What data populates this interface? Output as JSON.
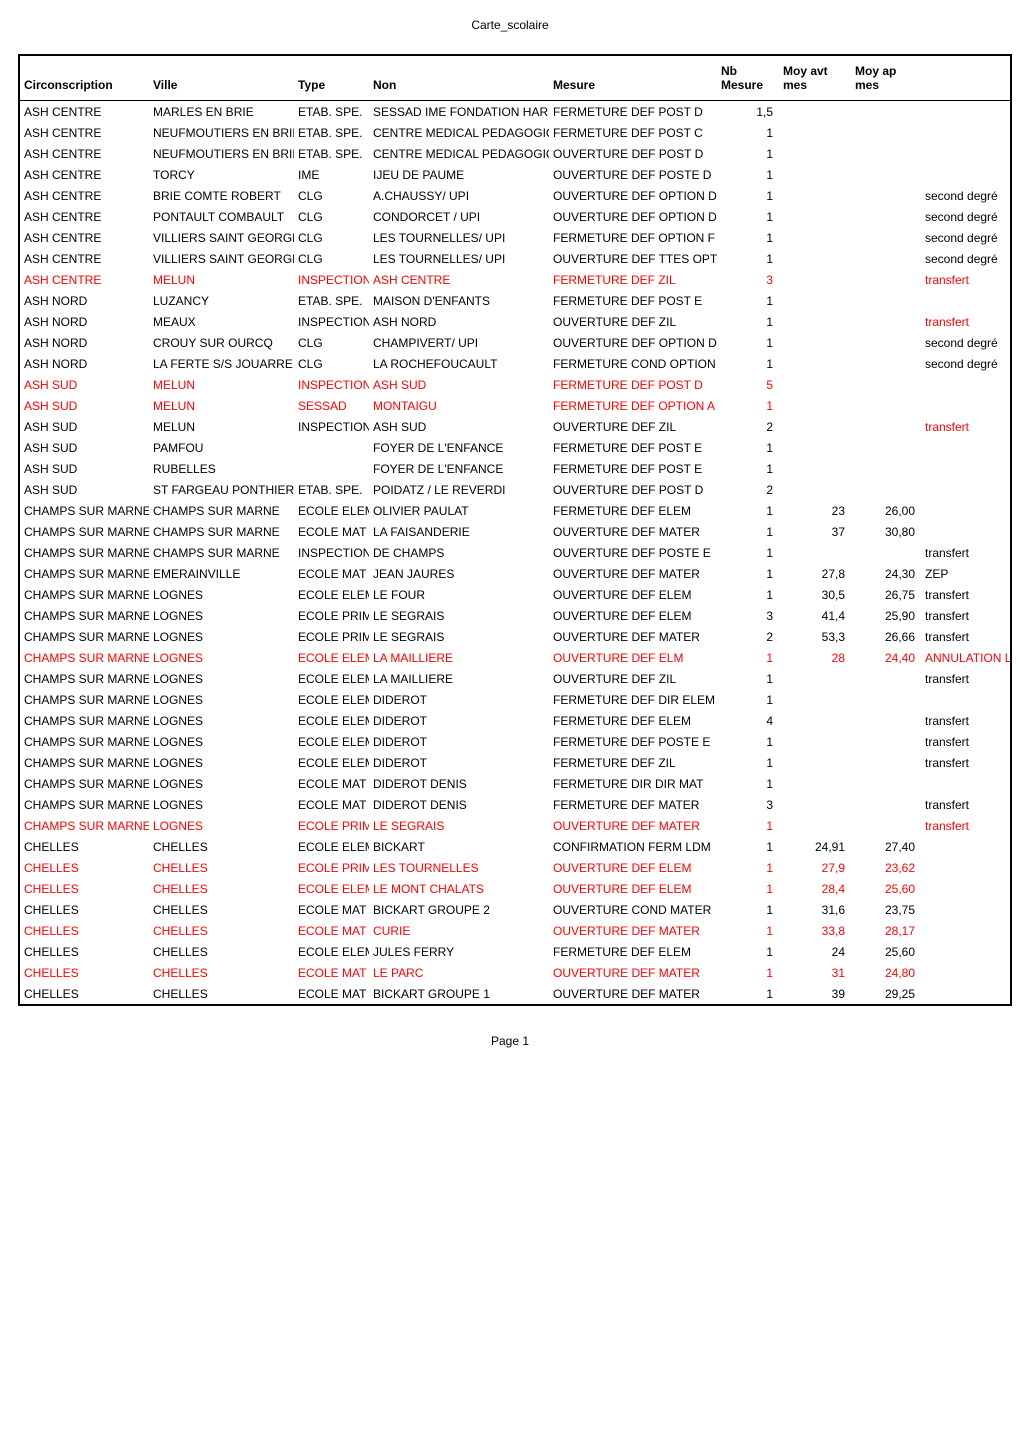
{
  "header": "Carte_scolaire",
  "footer": "Page 1",
  "columns": [
    "Circonscription",
    "Ville",
    "Type",
    "Non",
    "Mesure",
    "Nb Mesure",
    "Moy avt mes",
    "Moy ap mes",
    ""
  ],
  "col_align": [
    "left",
    "left",
    "left",
    "left",
    "left",
    "right",
    "right",
    "right",
    "left"
  ],
  "rows": [
    {
      "red": false,
      "cells": [
        "ASH CENTRE",
        "MARLES EN BRIE",
        "ETAB. SPE.",
        "SESSAD IME FONDATION HARDY",
        "FERMETURE DEF POST D",
        "1,5",
        "",
        "",
        ""
      ]
    },
    {
      "red": false,
      "cells": [
        "ASH CENTRE",
        "NEUFMOUTIERS EN BRIE",
        "ETAB. SPE.",
        "CENTRE MEDICAL PEDAGOGIQU",
        "FERMETURE DEF POST C",
        "1",
        "",
        "",
        ""
      ]
    },
    {
      "red": false,
      "cells": [
        "ASH CENTRE",
        "NEUFMOUTIERS EN BRIE",
        "ETAB. SPE.",
        "CENTRE MEDICAL PEDAGOGIQU",
        "OUVERTURE DEF POST D",
        "1",
        "",
        "",
        ""
      ]
    },
    {
      "red": false,
      "cells": [
        "ASH CENTRE",
        "TORCY",
        "IME",
        "IJEU DE PAUME",
        "OUVERTURE DEF POSTE D",
        "1",
        "",
        "",
        ""
      ]
    },
    {
      "red": false,
      "cells": [
        "ASH CENTRE",
        "BRIE COMTE ROBERT",
        "CLG",
        "A.CHAUSSY/ UPI",
        "OUVERTURE DEF  OPTION D",
        "1",
        "",
        "",
        "second degré"
      ]
    },
    {
      "red": false,
      "cells": [
        "ASH CENTRE",
        "PONTAULT COMBAULT",
        "CLG",
        "CONDORCET / UPI",
        "OUVERTURE DEF OPTION D",
        "1",
        "",
        "",
        "second degré"
      ]
    },
    {
      "red": false,
      "cells": [
        "ASH CENTRE",
        "VILLIERS SAINT GEORGES",
        "CLG",
        "LES TOURNELLES/ UPI",
        "FERMETURE DEF OPTION F",
        "1",
        "",
        "",
        "second degré"
      ]
    },
    {
      "red": false,
      "cells": [
        "ASH CENTRE",
        "VILLIERS SAINT GEORGES",
        "CLG",
        "LES TOURNELLES/ UPI",
        "OUVERTURE DEF TTES OPTION",
        "1",
        "",
        "",
        "second degré"
      ]
    },
    {
      "red": true,
      "cells": [
        "ASH CENTRE",
        "MELUN",
        "INSPECTION",
        "ASH CENTRE",
        "FERMETURE DEF ZIL",
        "3",
        "",
        "",
        "transfert"
      ]
    },
    {
      "red": false,
      "cells": [
        "ASH NORD",
        "LUZANCY",
        "ETAB. SPE.",
        "MAISON D'ENFANTS",
        "FERMETURE DEF POST E",
        "1",
        "",
        "",
        ""
      ]
    },
    {
      "red": false,
      "redExtra": true,
      "cells": [
        "ASH NORD",
        "MEAUX",
        "INSPECTION",
        "ASH NORD",
        "OUVERTURE DEF ZIL",
        "1",
        "",
        "",
        "transfert"
      ]
    },
    {
      "red": false,
      "cells": [
        "ASH NORD",
        "CROUY SUR OURCQ",
        "CLG",
        "CHAMPIVERT/ UPI",
        "OUVERTURE DEF OPTION D",
        "1",
        "",
        "",
        "second degré"
      ]
    },
    {
      "red": false,
      "cells": [
        "ASH NORD",
        "LA FERTE S/S JOUARRE",
        "CLG",
        "LA ROCHEFOUCAULT",
        "FERMETURE COND OPTION D",
        "1",
        "",
        "",
        "second degré"
      ]
    },
    {
      "red": true,
      "cells": [
        "ASH SUD",
        "MELUN",
        "INSPECTION",
        "ASH SUD",
        "FERMETURE DEF POST D",
        "5",
        "",
        "",
        ""
      ]
    },
    {
      "red": true,
      "cells": [
        "ASH SUD",
        "MELUN",
        "SESSAD",
        "MONTAIGU",
        "FERMETURE DEF OPTION A",
        "1",
        "",
        "",
        ""
      ]
    },
    {
      "red": false,
      "redExtra": true,
      "cells": [
        "ASH SUD",
        "MELUN",
        "INSPECTION",
        "ASH SUD",
        "OUVERTURE DEF ZIL",
        "2",
        "",
        "",
        "transfert"
      ]
    },
    {
      "red": false,
      "cells": [
        "ASH SUD",
        "PAMFOU",
        "",
        "FOYER DE L'ENFANCE",
        "FERMETURE DEF POST E",
        "1",
        "",
        "",
        ""
      ]
    },
    {
      "red": false,
      "cells": [
        "ASH SUD",
        "RUBELLES",
        "",
        "FOYER DE L'ENFANCE",
        "FERMETURE DEF POST E",
        "1",
        "",
        "",
        ""
      ]
    },
    {
      "red": false,
      "cells": [
        "ASH SUD",
        "ST FARGEAU PONTHIERRY",
        "ETAB. SPE.",
        "POIDATZ / LE REVERDI",
        "OUVERTURE DEF POST D",
        "2",
        "",
        "",
        ""
      ]
    },
    {
      "red": false,
      "cells": [
        "CHAMPS SUR MARNE",
        "CHAMPS SUR MARNE",
        "ECOLE ELEM",
        "OLIVIER PAULAT",
        "FERMETURE DEF ELEM",
        "1",
        "23",
        "26,00",
        ""
      ]
    },
    {
      "red": false,
      "cells": [
        "CHAMPS SUR MARNE",
        "CHAMPS SUR MARNE",
        "ECOLE MAT",
        "LA FAISANDERIE",
        "OUVERTURE DEF MATER",
        "1",
        "37",
        "30,80",
        ""
      ]
    },
    {
      "red": false,
      "cells": [
        "CHAMPS SUR MARNE",
        "CHAMPS SUR MARNE",
        "INSPECTION",
        "DE CHAMPS",
        "OUVERTURE DEF POSTE E",
        "1",
        "",
        "",
        "transfert"
      ]
    },
    {
      "red": false,
      "cells": [
        "CHAMPS SUR MARNE",
        "EMERAINVILLE",
        "ECOLE MAT",
        "JEAN JAURES",
        "OUVERTURE DEF MATER",
        "1",
        "27,8",
        "24,30",
        "ZEP"
      ]
    },
    {
      "red": false,
      "cells": [
        "CHAMPS SUR MARNE",
        "LOGNES",
        "ECOLE ELEM",
        "LE FOUR",
        "OUVERTURE DEF ELEM",
        "1",
        "30,5",
        "26,75",
        "transfert"
      ]
    },
    {
      "red": false,
      "cells": [
        "CHAMPS SUR MARNE",
        "LOGNES",
        "ECOLE PRIM",
        "LE SEGRAIS",
        "OUVERTURE DEF ELEM",
        "3",
        "41,4",
        "25,90",
        "transfert"
      ]
    },
    {
      "red": false,
      "cells": [
        "CHAMPS SUR MARNE",
        "LOGNES",
        "ECOLE PRIM",
        "LE SEGRAIS",
        "OUVERTURE DEF MATER",
        "2",
        "53,3",
        "26,66",
        "transfert"
      ]
    },
    {
      "red": true,
      "cells": [
        "CHAMPS SUR MARNE",
        "LOGNES",
        "ECOLE ELEM",
        "LA MAILLIERE",
        "OUVERTURE DEF ELM",
        "1",
        "28",
        "24,40",
        "ANNULATION Lldm"
      ]
    },
    {
      "red": false,
      "cells": [
        "CHAMPS SUR MARNE",
        "LOGNES",
        "ECOLE ELEM",
        "LA MAILLIERE",
        "OUVERTURE DEF ZIL",
        "1",
        "",
        "",
        "transfert"
      ]
    },
    {
      "red": false,
      "cells": [
        "CHAMPS SUR MARNE",
        "LOGNES",
        "ECOLE ELEM",
        "DIDEROT",
        "FERMETURE DEF DIR ELEM",
        "1",
        "",
        "",
        ""
      ]
    },
    {
      "red": false,
      "cells": [
        "CHAMPS SUR MARNE",
        "LOGNES",
        "ECOLE ELEM",
        "DIDEROT",
        "FERMETURE DEF ELEM",
        "4",
        "",
        "",
        "transfert"
      ]
    },
    {
      "red": false,
      "cells": [
        "CHAMPS SUR MARNE",
        "LOGNES",
        "ECOLE ELEM",
        "DIDEROT",
        "FERMETURE DEF POSTE E",
        "1",
        "",
        "",
        "transfert"
      ]
    },
    {
      "red": false,
      "cells": [
        "CHAMPS SUR MARNE",
        "LOGNES",
        "ECOLE ELEM",
        "DIDEROT",
        "FERMETURE  DEF ZIL",
        "1",
        "",
        "",
        "transfert"
      ]
    },
    {
      "red": false,
      "cells": [
        "CHAMPS SUR MARNE",
        "LOGNES",
        "ECOLE MAT",
        "DIDEROT DENIS",
        "FERMETURE DIR DIR MAT",
        "1",
        "",
        "",
        ""
      ]
    },
    {
      "red": false,
      "cells": [
        "CHAMPS SUR MARNE",
        "LOGNES",
        "ECOLE MAT",
        "DIDEROT DENIS",
        "FERMETURE DEF MATER",
        "3",
        "",
        "",
        "transfert"
      ]
    },
    {
      "red": true,
      "cells": [
        "CHAMPS SUR MARNE",
        "LOGNES",
        "ECOLE PRIM",
        "LE SEGRAIS",
        "OUVERTURE DEF MATER",
        "1",
        "",
        "",
        "transfert"
      ]
    },
    {
      "red": false,
      "cells": [
        "CHELLES",
        "CHELLES",
        "ECOLE ELEM",
        "BICKART",
        "CONFIRMATION FERM LDM",
        "1",
        "24,91",
        "27,40",
        ""
      ]
    },
    {
      "red": true,
      "cells": [
        "CHELLES",
        "CHELLES",
        "ECOLE PRIM",
        "LES TOURNELLES",
        "OUVERTURE DEF ELEM",
        "1",
        "27,9",
        "23,62",
        ""
      ]
    },
    {
      "red": true,
      "cells": [
        "CHELLES",
        "CHELLES",
        "ECOLE ELEM",
        "LE MONT CHALATS",
        "OUVERTURE DEF ELEM",
        "1",
        "28,4",
        "25,60",
        ""
      ]
    },
    {
      "red": false,
      "cells": [
        "CHELLES",
        "CHELLES",
        "ECOLE MAT",
        "BICKART GROUPE 2",
        "OUVERTURE COND MATER",
        "1",
        "31,6",
        "23,75",
        ""
      ]
    },
    {
      "red": true,
      "cells": [
        "CHELLES",
        "CHELLES",
        "ECOLE MAT",
        "CURIE",
        "OUVERTURE DEF MATER",
        "1",
        "33,8",
        "28,17",
        ""
      ]
    },
    {
      "red": false,
      "cells": [
        "CHELLES",
        "CHELLES",
        "ECOLE ELEM",
        "JULES FERRY",
        "FERMETURE DEF ELEM",
        "1",
        "24",
        "25,60",
        ""
      ]
    },
    {
      "red": true,
      "cells": [
        "CHELLES",
        "CHELLES",
        "ECOLE MAT",
        "LE PARC",
        "OUVERTURE DEF MATER",
        "1",
        "31",
        "24,80",
        ""
      ]
    },
    {
      "red": false,
      "cells": [
        "CHELLES",
        "CHELLES",
        "ECOLE MAT",
        "BICKART GROUPE 1",
        "OUVERTURE DEF MATER",
        "1",
        "39",
        "29,25",
        ""
      ]
    }
  ],
  "style": {
    "text_color": "#000000",
    "red_color": "#ff0000",
    "border_color": "#000000",
    "background": "#ffffff",
    "header_fontsize": 12,
    "body_fontsize": 12
  }
}
